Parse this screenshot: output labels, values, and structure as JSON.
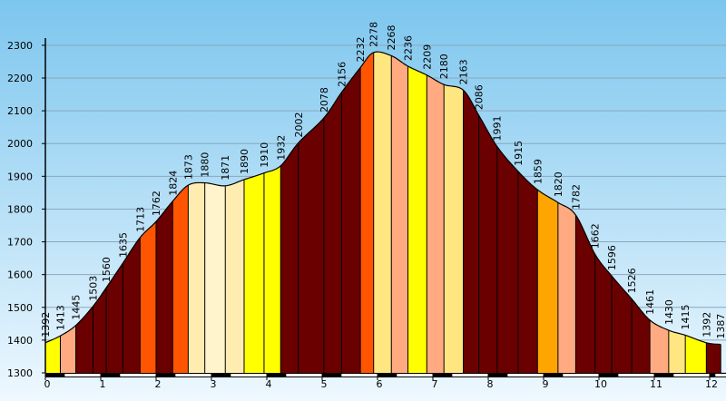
{
  "chart_data": {
    "type": "area",
    "title": "",
    "xlabel": "",
    "ylabel": "",
    "xlim": [
      0,
      12.2
    ],
    "ylim": [
      1300,
      2300
    ],
    "grid": true,
    "legend": "none",
    "x_ticks": [
      "0",
      "1",
      "2",
      "3",
      "4",
      "5",
      "6",
      "7",
      "8",
      "9",
      "10",
      "11",
      "12"
    ],
    "y_ticks": [
      "1300",
      "1400",
      "1500",
      "1600",
      "1700",
      "1800",
      "1900",
      "2000",
      "2100",
      "2200",
      "2300"
    ],
    "x": [
      0.0,
      0.27,
      0.55,
      0.86,
      1.1,
      1.4,
      1.71,
      2.0,
      2.3,
      2.58,
      2.88,
      3.25,
      3.59,
      3.95,
      4.25,
      4.57,
      5.03,
      5.35,
      5.69,
      5.93,
      6.25,
      6.55,
      6.89,
      7.2,
      7.55,
      7.83,
      8.16,
      8.54,
      8.89,
      9.26,
      9.58,
      9.93,
      10.23,
      10.59,
      10.92,
      11.26,
      11.56,
      11.94,
      12.2
    ],
    "values": [
      1392,
      1413,
      1445,
      1503,
      1560,
      1635,
      1713,
      1762,
      1824,
      1873,
      1880,
      1871,
      1890,
      1910,
      1932,
      2002,
      2078,
      2156,
      2232,
      2278,
      2268,
      2236,
      2209,
      2180,
      2163,
      2086,
      1991,
      1915,
      1859,
      1820,
      1782,
      1662,
      1596,
      1526,
      1461,
      1430,
      1415,
      1392,
      1387
    ],
    "segment_colors": [
      "#ffff00",
      "#ffaa80",
      "#6b0000",
      "#6b0000",
      "#6b0000",
      "#6b0000",
      "#ff5500",
      "#6b0000",
      "#ff5500",
      "#ffecb0",
      "#fff4cc",
      "#ffecb0",
      "#ffff00",
      "#ffff00",
      "#6b0000",
      "#6b0000",
      "#6b0000",
      "#6b0000",
      "#ff5500",
      "#ffe680",
      "#ffaa80",
      "#ffff00",
      "#ffaa80",
      "#ffe680",
      "#6b0000",
      "#6b0000",
      "#6b0000",
      "#6b0000",
      "#ffa500",
      "#ffaa80",
      "#6b0000",
      "#6b0000",
      "#6b0000",
      "#6b0000",
      "#ffaa80",
      "#ffe680",
      "#ffff00"
    ],
    "background_top": "#7cc6ee",
    "background_bottom": "#eef8ff",
    "grid_color": "#8aa8bd"
  }
}
